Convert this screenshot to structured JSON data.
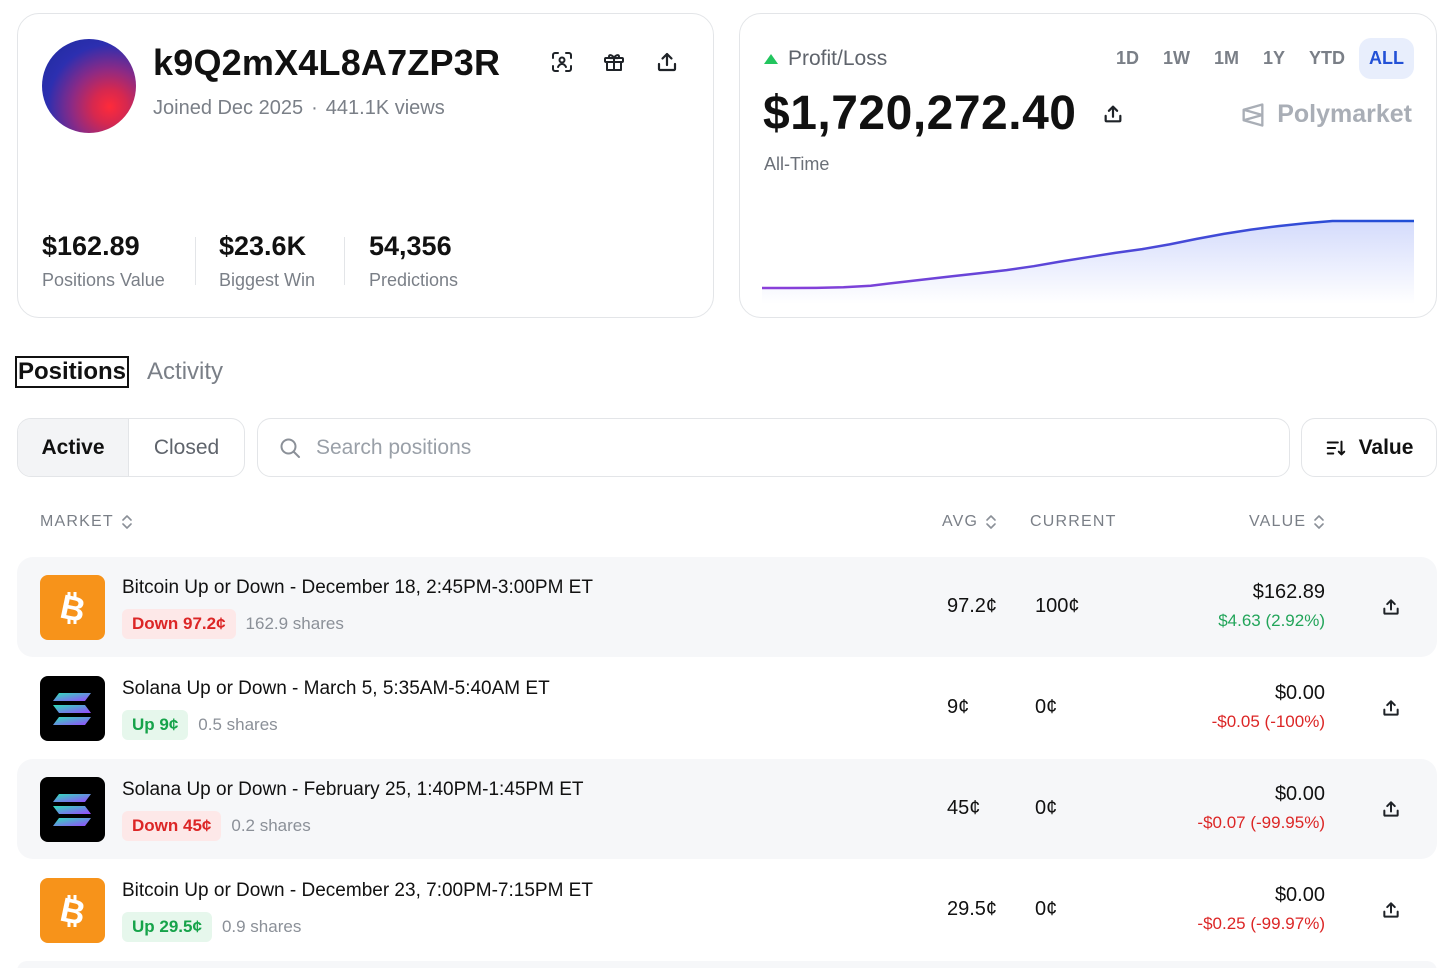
{
  "profile": {
    "username": "k9Q2mX4L8A7ZP3R",
    "joined": "Joined Dec 2025",
    "separator": "·",
    "views": "441.1K views",
    "stats": [
      {
        "value": "$162.89",
        "label": "Positions Value"
      },
      {
        "value": "$23.6K",
        "label": "Biggest Win"
      },
      {
        "value": "54,356",
        "label": "Predictions"
      }
    ]
  },
  "pnl": {
    "title": "Profit/Loss",
    "value": "$1,720,272.40",
    "period": "All-Time",
    "brand": "Polymarket",
    "ranges": [
      "1D",
      "1W",
      "1M",
      "1Y",
      "YTD",
      "ALL"
    ],
    "active_range": "ALL",
    "colors": {
      "start": "#8b3fd9",
      "end": "#1f4fd6",
      "up": "#22c55e"
    }
  },
  "chart_data": {
    "type": "area",
    "title": "Profit/Loss",
    "xlabel": "",
    "ylabel": "",
    "grid": false,
    "x": [
      0,
      1,
      2,
      3,
      4,
      5,
      6,
      7,
      8,
      9,
      10,
      11,
      12,
      13,
      14,
      15,
      16,
      17,
      18,
      19,
      20,
      21,
      22,
      23,
      24
    ],
    "values": [
      0,
      0,
      2000,
      20000,
      60000,
      140000,
      220000,
      300000,
      380000,
      460000,
      560000,
      680000,
      790000,
      900000,
      1000000,
      1120000,
      1260000,
      1390000,
      1500000,
      1590000,
      1660000,
      1720272,
      1720272,
      1720272,
      1720272
    ],
    "ylim": [
      0,
      1900000
    ]
  },
  "tabs": {
    "positions": "Positions",
    "activity": "Activity"
  },
  "filters": {
    "active": "Active",
    "closed": "Closed",
    "search_placeholder": "Search positions",
    "sort_label": "Value"
  },
  "table": {
    "headers": {
      "market": "MARKET",
      "avg": "AVG",
      "current": "CURRENT",
      "value": "VALUE"
    },
    "rows": [
      {
        "coin": "btc",
        "title": "Bitcoin Up or Down - December 18, 2:45PM-3:00PM ET",
        "outcome": "Down 97.2¢",
        "direction": "down",
        "shares": "162.9 shares",
        "avg": "97.2¢",
        "current": "100¢",
        "value": "$162.89",
        "change": "$4.63 (2.92%)",
        "change_sign": "pos"
      },
      {
        "coin": "sol",
        "title": "Solana Up or Down - March 5, 5:35AM-5:40AM ET",
        "outcome": "Up 9¢",
        "direction": "up",
        "shares": "0.5 shares",
        "avg": "9¢",
        "current": "0¢",
        "value": "$0.00",
        "change": "-$0.05 (-100%)",
        "change_sign": "neg"
      },
      {
        "coin": "sol",
        "title": "Solana Up or Down - February 25, 1:40PM-1:45PM ET",
        "outcome": "Down 45¢",
        "direction": "down",
        "shares": "0.2 shares",
        "avg": "45¢",
        "current": "0¢",
        "value": "$0.00",
        "change": "-$0.07 (-99.95%)",
        "change_sign": "neg"
      },
      {
        "coin": "btc",
        "title": "Bitcoin Up or Down - December 23, 7:00PM-7:15PM ET",
        "outcome": "Up 29.5¢",
        "direction": "up",
        "shares": "0.9 shares",
        "avg": "29.5¢",
        "current": "0¢",
        "value": "$0.00",
        "change": "-$0.25 (-99.97%)",
        "change_sign": "neg"
      }
    ]
  }
}
